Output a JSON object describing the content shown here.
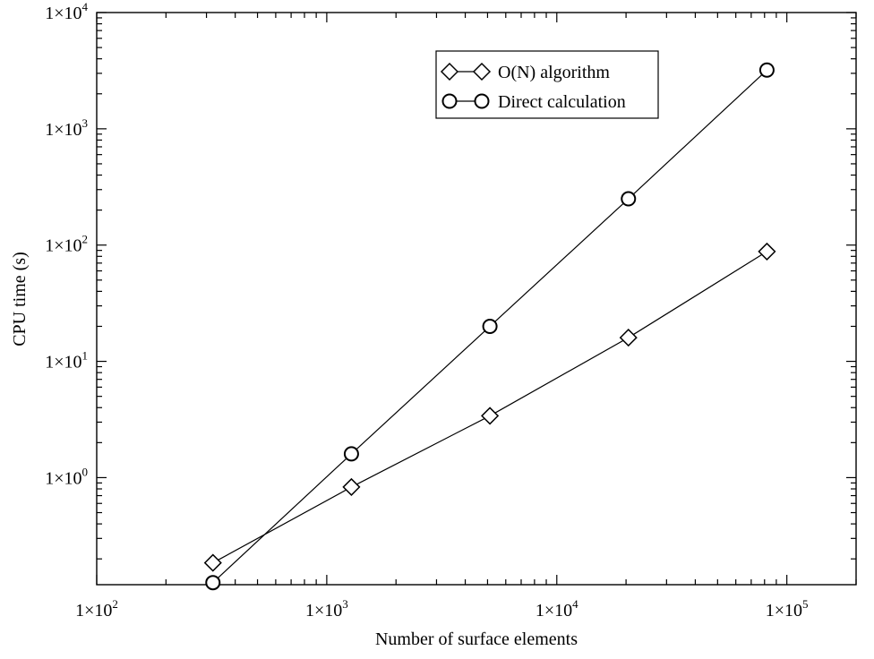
{
  "chart_data": {
    "type": "line",
    "xlabel": "Number of surface elements",
    "ylabel": "CPU time (s)",
    "x_scale": "log",
    "y_scale": "log",
    "xlim": [
      100,
      200000
    ],
    "ylim": [
      0.12,
      10000
    ],
    "x_ticks": [
      {
        "value": 100,
        "mantissa": "1×10",
        "exp": "2"
      },
      {
        "value": 1000,
        "mantissa": "1×10",
        "exp": "3"
      },
      {
        "value": 10000,
        "mantissa": "1×10",
        "exp": "4"
      },
      {
        "value": 100000,
        "mantissa": "1×10",
        "exp": "5"
      }
    ],
    "y_ticks": [
      {
        "value": 1,
        "mantissa": "1×10",
        "exp": "0"
      },
      {
        "value": 10,
        "mantissa": "1×10",
        "exp": "1"
      },
      {
        "value": 100,
        "mantissa": "1×10",
        "exp": "2"
      },
      {
        "value": 1000,
        "mantissa": "1×10",
        "exp": "3"
      },
      {
        "value": 10000,
        "mantissa": "1×10",
        "exp": "4"
      }
    ],
    "grid": false,
    "legend_position": "top-right",
    "series": [
      {
        "name": "O(N) algorithm",
        "marker": "diamond",
        "color": "#000000",
        "x": [
          320,
          1280,
          5120,
          20480,
          81920
        ],
        "y": [
          0.185,
          0.83,
          3.4,
          16,
          88
        ]
      },
      {
        "name": "Direct calculation",
        "marker": "circle",
        "color": "#000000",
        "x": [
          320,
          1280,
          5120,
          20480,
          81920
        ],
        "y": [
          0.125,
          1.6,
          20,
          250,
          3200
        ]
      }
    ]
  }
}
